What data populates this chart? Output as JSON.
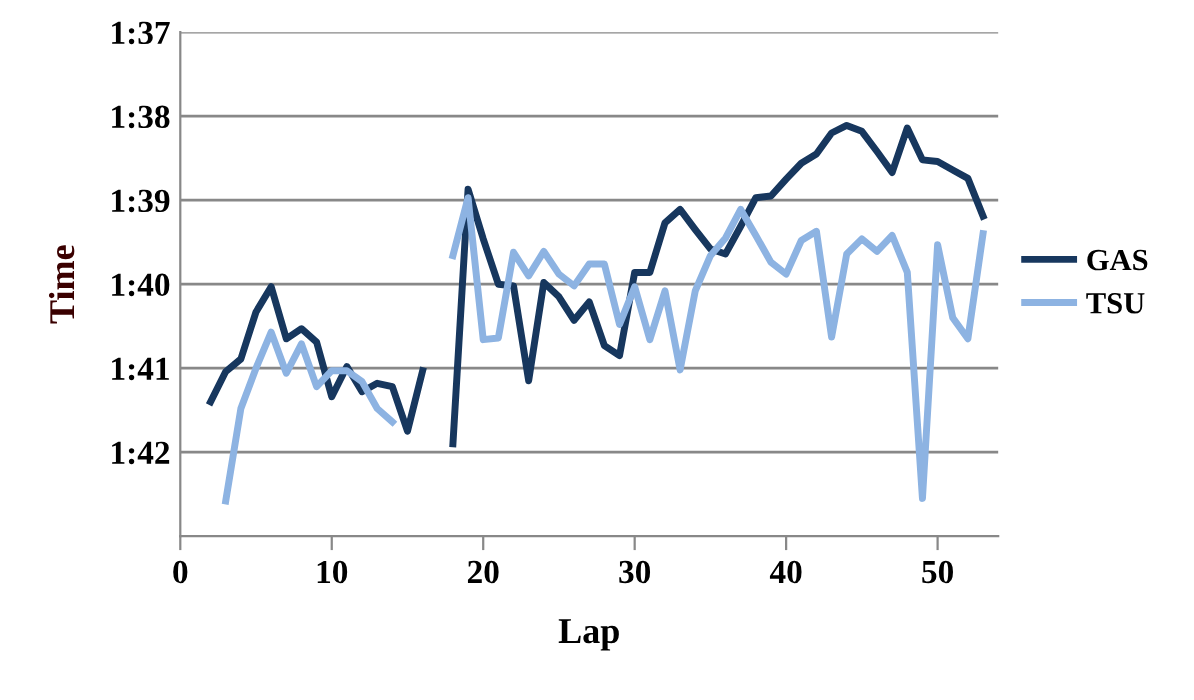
{
  "chart_data": {
    "type": "line",
    "xlabel": "Lap",
    "ylabel": "Time",
    "x": [
      2,
      3,
      4,
      5,
      6,
      7,
      8,
      9,
      10,
      11,
      12,
      13,
      14,
      15,
      16,
      17,
      18,
      19,
      20,
      21,
      22,
      23,
      24,
      25,
      26,
      27,
      28,
      29,
      30,
      31,
      32,
      33,
      34,
      35,
      36,
      37,
      38,
      39,
      40,
      41,
      42,
      43,
      44,
      45,
      46,
      47,
      48,
      49,
      50,
      51,
      52,
      53
    ],
    "series": [
      {
        "name": "GAS",
        "color": "#17375e",
        "values": [
          101.4,
          101.04,
          100.89,
          100.33,
          100.03,
          100.65,
          100.53,
          100.69,
          101.34,
          100.98,
          101.28,
          101.18,
          101.22,
          101.75,
          101.03,
          null,
          101.9,
          98.87,
          99.46,
          100.0,
          100.02,
          101.15,
          99.98,
          100.15,
          100.43,
          100.21,
          100.73,
          100.85,
          99.86,
          99.86,
          99.27,
          99.11,
          99.35,
          99.58,
          99.64,
          99.31,
          98.97,
          98.95,
          98.75,
          98.56,
          98.45,
          98.2,
          98.11,
          98.18,
          98.42,
          98.67,
          98.14,
          98.52,
          98.54,
          98.64,
          98.74,
          99.19
        ]
      },
      {
        "name": "TSU",
        "color": "#8db3e2",
        "values": [
          null,
          102.58,
          101.48,
          101.0,
          100.57,
          101.06,
          100.71,
          101.22,
          101.03,
          101.03,
          101.16,
          101.48,
          101.64,
          null,
          null,
          null,
          99.66,
          98.97,
          100.66,
          100.64,
          99.62,
          99.9,
          99.61,
          99.88,
          100.02,
          99.76,
          99.76,
          100.48,
          100.03,
          100.66,
          100.08,
          101.02,
          100.08,
          99.66,
          99.45,
          99.11,
          99.42,
          99.74,
          99.88,
          99.48,
          99.37,
          100.63,
          99.64,
          99.46,
          99.61,
          99.42,
          99.86,
          102.55,
          99.53,
          100.4,
          100.65,
          99.4
        ]
      }
    ],
    "xlim": [
      0,
      54
    ],
    "xticks": [
      0,
      10,
      20,
      30,
      40,
      50
    ],
    "ylim": [
      103,
      97
    ],
    "yticks": [
      {
        "value": 97,
        "label": "1:37"
      },
      {
        "value": 98,
        "label": "1:38"
      },
      {
        "value": 99,
        "label": "1:39"
      },
      {
        "value": 100,
        "label": "1:40"
      },
      {
        "value": 101,
        "label": "1:41"
      },
      {
        "value": 102,
        "label": "1:42"
      }
    ],
    "grid": "y",
    "legend": "right",
    "marker": "none",
    "line_style": "solid"
  }
}
